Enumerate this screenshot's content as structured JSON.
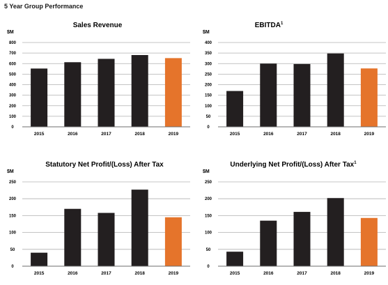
{
  "page": {
    "heading": "5 Year Group Performance"
  },
  "colors": {
    "bar": "#231f20",
    "highlight": "#e5742b"
  },
  "chart_data": [
    {
      "type": "bar",
      "title": "Sales Revenue",
      "title_sup": "",
      "ylabel": "$M",
      "categories": [
        "2015",
        "2016",
        "2017",
        "2018",
        "2019"
      ],
      "values": [
        553,
        613,
        645,
        681,
        652
      ],
      "highlight_index": 4,
      "ylim": [
        0,
        800
      ],
      "yticks": [
        0,
        100,
        200,
        300,
        400,
        500,
        600,
        700,
        800
      ],
      "grid": true
    },
    {
      "type": "bar",
      "title": "EBITDA",
      "title_sup": "1",
      "ylabel": "$M",
      "categories": [
        "2015",
        "2016",
        "2017",
        "2018",
        "2019"
      ],
      "values": [
        170,
        300,
        298,
        348,
        277
      ],
      "highlight_index": 4,
      "ylim": [
        0,
        400
      ],
      "yticks": [
        0,
        50,
        100,
        150,
        200,
        250,
        300,
        350,
        400
      ],
      "grid": true
    },
    {
      "type": "bar",
      "title": "Statutory Net Profit/(Loss) After Tax",
      "title_sup": "",
      "ylabel": "$M",
      "categories": [
        "2015",
        "2016",
        "2017",
        "2018",
        "2019"
      ],
      "values": [
        40,
        170,
        158,
        227,
        145
      ],
      "highlight_index": 4,
      "ylim": [
        0,
        250
      ],
      "yticks": [
        0,
        50,
        100,
        150,
        200,
        250
      ],
      "grid": true
    },
    {
      "type": "bar",
      "title": "Underlying Net Profit/(Loss) After Tax",
      "title_sup": "1",
      "ylabel": "$M",
      "categories": [
        "2015",
        "2016",
        "2017",
        "2018",
        "2019"
      ],
      "values": [
        43,
        135,
        161,
        202,
        143
      ],
      "highlight_index": 4,
      "ylim": [
        0,
        250
      ],
      "yticks": [
        0,
        50,
        100,
        150,
        200,
        250
      ],
      "grid": true
    }
  ]
}
